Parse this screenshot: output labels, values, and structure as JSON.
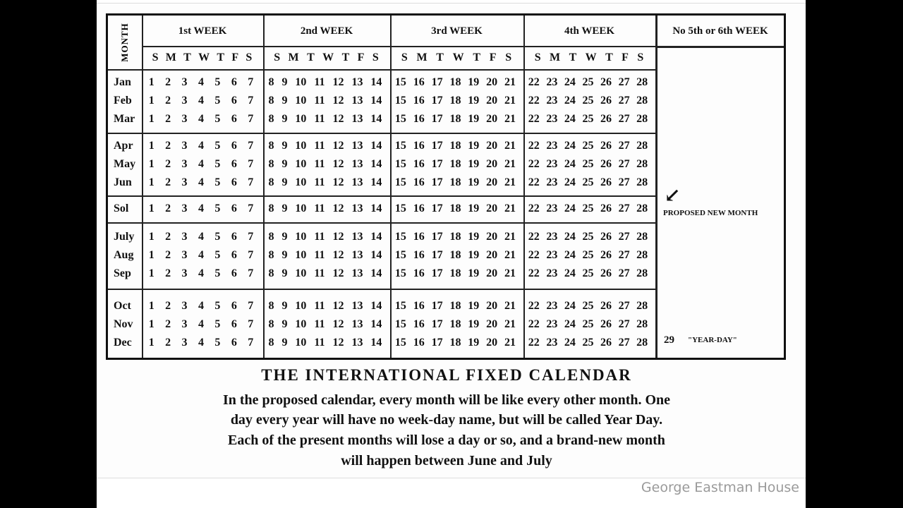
{
  "table": {
    "month_header": "MONTH",
    "extra_header": "No 5th or 6th WEEK",
    "weekdays": [
      "S",
      "M",
      "T",
      "W",
      "T",
      "F",
      "S"
    ],
    "weeks": [
      {
        "label": "1st WEEK",
        "days": [
          "1",
          "2",
          "3",
          "4",
          "5",
          "6",
          "7"
        ]
      },
      {
        "label": "2nd WEEK",
        "days": [
          "8",
          "9",
          "10",
          "11",
          "12",
          "13",
          "14"
        ]
      },
      {
        "label": "3rd WEEK",
        "days": [
          "15",
          "16",
          "17",
          "18",
          "19",
          "20",
          "21"
        ]
      },
      {
        "label": "4th WEEK",
        "days": [
          "22",
          "23",
          "24",
          "25",
          "26",
          "27",
          "28"
        ]
      }
    ],
    "groups": [
      [
        "Jan",
        "Feb",
        "Mar"
      ],
      [
        "Apr",
        "May",
        "Jun"
      ],
      [
        "Sol"
      ],
      [
        "July",
        "Aug",
        "Sep"
      ],
      [
        "Oct",
        "Nov",
        "Dec"
      ]
    ],
    "proposed_note": "PROPOSED NEW MONTH",
    "year_day_number": "29",
    "year_day_label": "\"YEAR-DAY\""
  },
  "caption": {
    "title": "THE INTERNATIONAL FIXED CALENDAR",
    "lines": [
      "In the proposed calendar, every month will be like every other month.   One",
      "day every year will have no week-day name, but will be  called Year Day.",
      "Each of the present months will lose a day or so, and a brand-new  month",
      "will happen between June and July"
    ]
  },
  "credit": "George Eastman House"
}
